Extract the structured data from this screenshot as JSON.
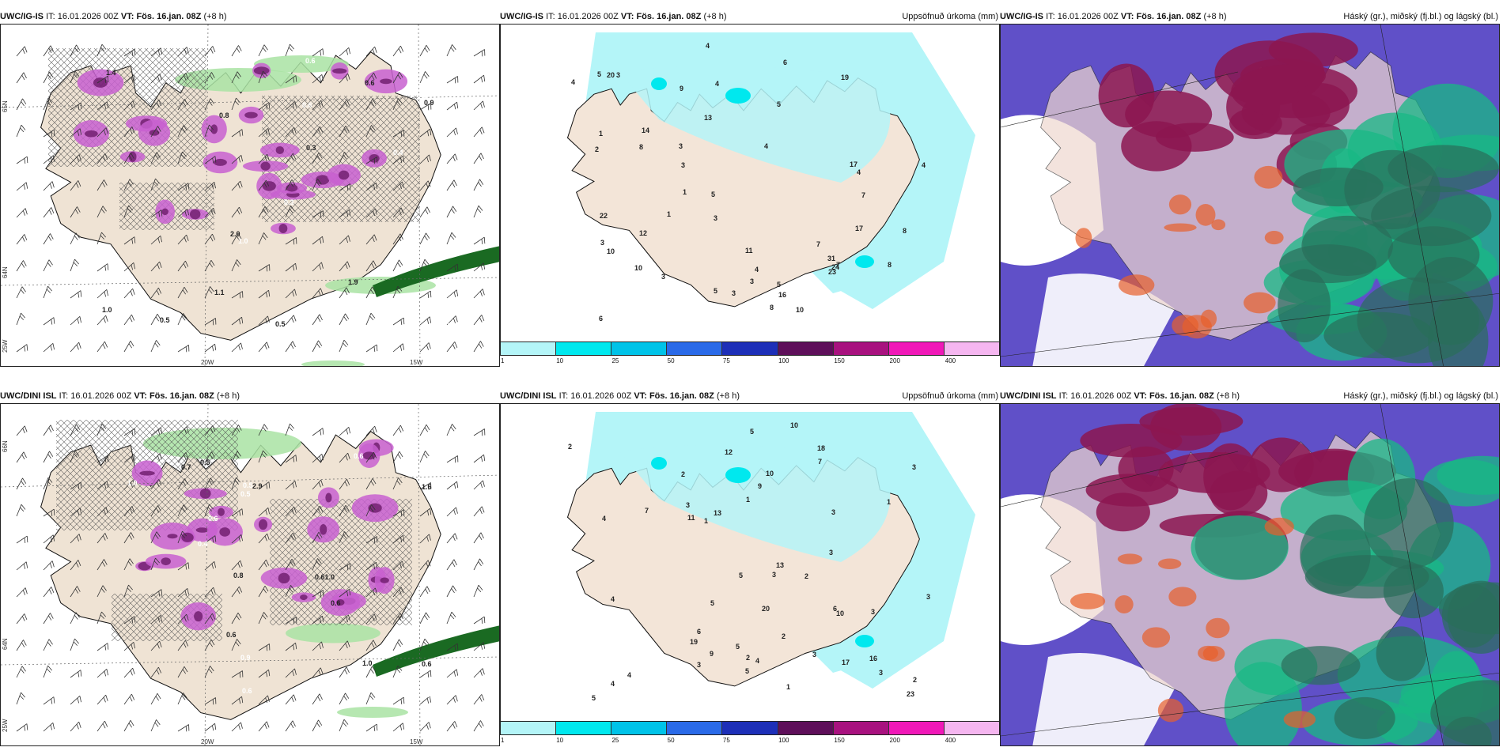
{
  "panels": [
    {
      "id": "r1c1",
      "model": "UWC/IG-IS",
      "it_label": "IT:",
      "it_value": "16.01.2026 00Z",
      "vt_label": "VT:",
      "vt_value": "Fös. 16.jan. 08Z",
      "lead": "(+8 h)",
      "right_title": "",
      "lon_labels": [
        "20W",
        "15W"
      ],
      "lat_labels": [
        "65N",
        "64N",
        "25W"
      ]
    },
    {
      "id": "r1c2",
      "model": "UWC/IG-IS",
      "it_label": "IT:",
      "it_value": "16.01.2026 00Z",
      "vt_label": "VT:",
      "vt_value": "Fös. 16.jan. 08Z",
      "lead": "(+8 h)",
      "right_title": "Uppsöfnuð úrkoma (mm)",
      "lon_labels": [],
      "lat_labels": []
    },
    {
      "id": "r1c3",
      "model": "UWC/IG-IS",
      "it_label": "IT:",
      "it_value": "16.01.2026 00Z",
      "vt_label": "VT:",
      "vt_value": "Fös. 16.jan. 08Z",
      "lead": "(+8 h)",
      "right_title": "Háský (gr.), miðský (fj.bl.) og lágský (bl.)",
      "lon_labels": [],
      "lat_labels": []
    },
    {
      "id": "r2c1",
      "model": "UWC/DINI ISL",
      "it_label": "IT:",
      "it_value": "16.01.2026 00Z",
      "vt_label": "VT:",
      "vt_value": "Fös. 16.jan. 08Z",
      "lead": "(+8 h)",
      "right_title": "",
      "lon_labels": [
        "20W",
        "15W"
      ],
      "lat_labels": [
        "66N",
        "64N",
        "25W"
      ]
    },
    {
      "id": "r2c2",
      "model": "UWC/DINI ISL",
      "it_label": "IT:",
      "it_value": "16.01.2026 00Z",
      "vt_label": "VT:",
      "vt_value": "Fös. 16.jan. 08Z",
      "lead": "(+8 h)",
      "right_title": "Uppsöfnuð úrkoma (mm)",
      "lon_labels": [],
      "lat_labels": []
    },
    {
      "id": "r2c3",
      "model": "UWC/DINI ISL",
      "it_label": "IT:",
      "it_value": "16.01.2026 00Z",
      "vt_label": "VT:",
      "vt_value": "Fös. 16.jan. 08Z",
      "lead": "(+8 h)",
      "right_title": "Háský (gr.), miðský (fj.bl.) og lágský (bl.)",
      "lon_labels": [],
      "lat_labels": []
    }
  ],
  "precip_colorbar": {
    "ticks": [
      "1",
      "10",
      "25",
      "50",
      "75",
      "100",
      "150",
      "200",
      "400"
    ],
    "colors": [
      "#b4f5f8",
      "#00e8ee",
      "#00c3e8",
      "#2a6ae8",
      "#1d2fb8",
      "#5e0f5a",
      "#a8127f",
      "#f018b8",
      "#f5b6f0"
    ]
  },
  "precip_labels_top": [
    "5",
    "4",
    "4",
    "4",
    "4",
    "10",
    "3",
    "22",
    "17",
    "14",
    "12",
    "8",
    "3",
    "10",
    "19",
    "16",
    "31",
    "24",
    "8",
    "4",
    "3",
    "7",
    "8",
    "3",
    "5",
    "3",
    "6",
    "8",
    "9",
    "3",
    "5",
    "7",
    "17",
    "11",
    "23",
    "13",
    "20",
    "7",
    "5",
    "1",
    "6",
    "10",
    "1",
    "3",
    "2",
    "5",
    "1",
    "3",
    "4",
    "4"
  ],
  "precip_labels_bottom": [
    "4",
    "3",
    "13",
    "20",
    "12",
    "10",
    "16",
    "18",
    "17",
    "19",
    "23",
    "11",
    "9",
    "5",
    "3",
    "3",
    "6",
    "4",
    "5",
    "3",
    "2",
    "4",
    "5",
    "2",
    "10",
    "7",
    "13",
    "9",
    "1",
    "2",
    "3",
    "5",
    "10",
    "5",
    "3",
    "1",
    "2",
    "3",
    "4",
    "5",
    "7",
    "6",
    "2",
    "3",
    "3",
    "1",
    "1",
    "4",
    "3",
    "2"
  ],
  "snow_labels_top": [
    "0.8",
    "1.0",
    "0.7",
    "0.5",
    "2.0",
    "1.0",
    "0.9",
    "1.1",
    "0.4",
    "0.6",
    "0.3",
    "0.6",
    "0.7",
    "0.5",
    "0.6",
    "0.9",
    "0.3",
    "1.4",
    "1.9",
    "0.9"
  ],
  "snow_labels_bottom": [
    "0.3",
    "0.6",
    "0.8",
    "0.7",
    "0.5",
    "0.5",
    "0.6",
    "1.6",
    "2.9",
    "0.6",
    "1.0",
    "0.7",
    "0.6",
    "0.4",
    "0.9",
    "0.5",
    "0.6",
    "1.0",
    "0.6",
    "0.61.0"
  ]
}
